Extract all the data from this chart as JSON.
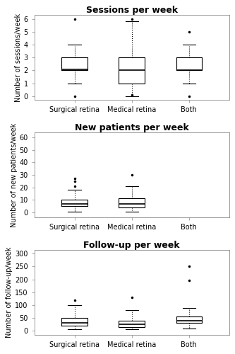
{
  "plots": [
    {
      "title": "Sessions per week",
      "ylabel": "Number of sessions/week",
      "ylim": [
        -0.3,
        6.3
      ],
      "yticks": [
        0,
        1,
        2,
        3,
        4,
        5,
        6
      ],
      "categories": [
        "Surgical retina",
        "Medical retina",
        "Both"
      ],
      "boxes": [
        {
          "q1": 2.0,
          "median": 2.1,
          "q3": 3.0,
          "whislo": 1.0,
          "whishi": 4.0,
          "fliers_low": [
            0.0
          ],
          "fliers_high": [
            6.0
          ]
        },
        {
          "q1": 1.0,
          "median": 2.0,
          "q3": 3.0,
          "whislo": 0.0,
          "whishi": 5.8,
          "fliers_low": [
            0.1
          ],
          "fliers_high": [
            6.0
          ]
        },
        {
          "q1": 2.0,
          "median": 2.0,
          "q3": 3.0,
          "whislo": 1.0,
          "whishi": 4.0,
          "fliers_low": [
            0.0
          ],
          "fliers_high": [
            5.0
          ]
        }
      ]
    },
    {
      "title": "New patients per week",
      "ylabel": "Number of new patients/week",
      "ylim": [
        -4,
        64
      ],
      "yticks": [
        0,
        10,
        20,
        30,
        40,
        50,
        60
      ],
      "categories": [
        "Surgical retina",
        "Medical retina",
        "Both"
      ],
      "boxes": [
        {
          "q1": 5.0,
          "median": 7.0,
          "q3": 10.0,
          "whislo": 0.5,
          "whishi": 18.0,
          "fliers_low": [],
          "fliers_high": [
            21.0,
            25.0,
            27.0
          ]
        },
        {
          "q1": 4.0,
          "median": 7.0,
          "q3": 11.0,
          "whislo": 0.5,
          "whishi": 21.0,
          "fliers_low": [],
          "fliers_high": [
            30.0
          ]
        },
        {
          "q1": null,
          "median": null,
          "q3": null,
          "whislo": null,
          "whishi": null,
          "fliers_low": [],
          "fliers_high": []
        }
      ]
    },
    {
      "title": "Follow-up per week",
      "ylabel": "Number of follow-up/week",
      "ylim": [
        -15,
        315
      ],
      "yticks": [
        0,
        50,
        100,
        150,
        200,
        250,
        300
      ],
      "categories": [
        "Surgical retina",
        "Medical retina",
        "Both"
      ],
      "boxes": [
        {
          "q1": 20.0,
          "median": 30.0,
          "q3": 50.0,
          "whislo": 5.0,
          "whishi": 100.0,
          "fliers_low": [],
          "fliers_high": [
            120.0
          ]
        },
        {
          "q1": 15.0,
          "median": 25.0,
          "q3": 40.0,
          "whislo": 5.0,
          "whishi": 80.0,
          "fliers_low": [],
          "fliers_high": [
            130.0
          ]
        },
        {
          "q1": 30.0,
          "median": 40.0,
          "q3": 55.0,
          "whislo": 10.0,
          "whishi": 90.0,
          "fliers_low": [],
          "fliers_high": [
            195.0,
            250.0
          ]
        }
      ]
    }
  ],
  "box_width": 0.45,
  "linecolor": "#000000",
  "flier_marker": ".",
  "flier_size": 3,
  "background_color": "#ffffff",
  "title_fontsize": 9,
  "label_fontsize": 7,
  "tick_fontsize": 7,
  "positions": [
    1,
    2,
    3
  ]
}
